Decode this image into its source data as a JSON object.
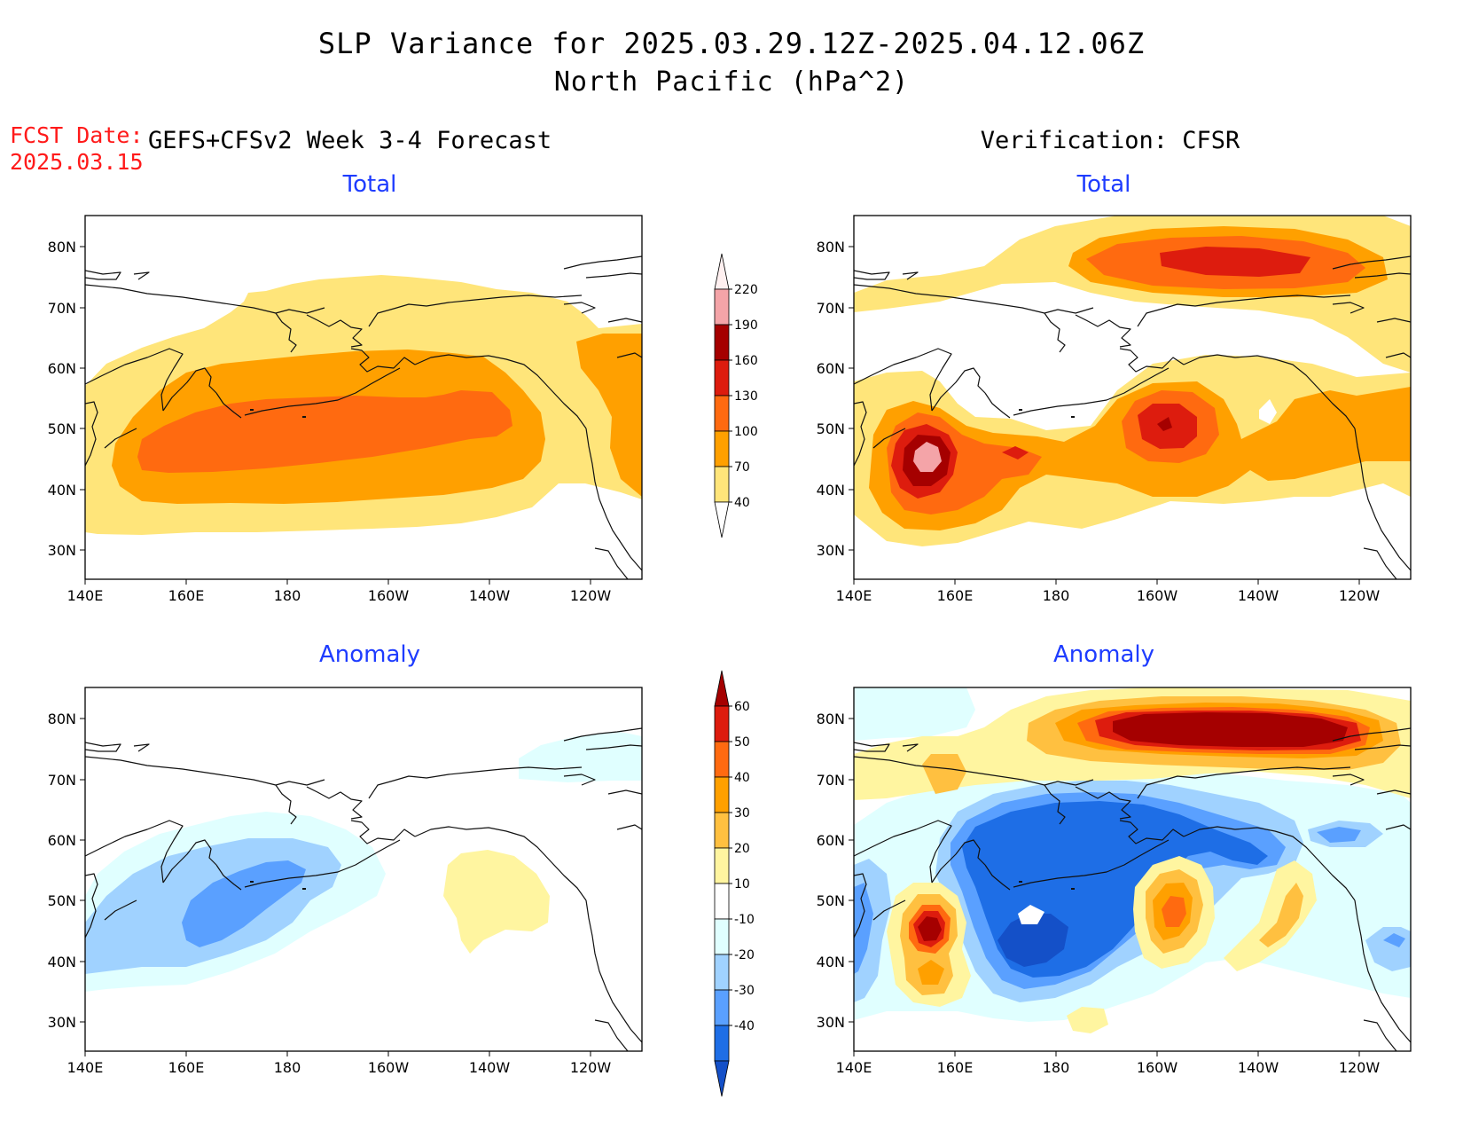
{
  "header": {
    "title_line1": "SLP Variance for 2025.03.29.12Z-2025.04.12.06Z",
    "title_line2": "North Pacific (hPa^2)",
    "fcst_label": "FCST Date:",
    "fcst_value": "2025.03.15",
    "left_column_title": "GEFS+CFSv2 Week 3-4 Forecast",
    "right_column_title": "Verification: CFSR"
  },
  "panels": {
    "total_forecast_title": "Total",
    "total_verification_title": "Total",
    "anomaly_forecast_title": "Anomaly",
    "anomaly_verification_title": "Anomaly"
  },
  "axes": {
    "lat_labels": [
      "80N",
      "70N",
      "60N",
      "50N",
      "40N",
      "30N"
    ],
    "lon_labels": [
      "140E",
      "160E",
      "180",
      "160W",
      "140W",
      "120W"
    ]
  },
  "legends": {
    "total": {
      "labels": [
        "220",
        "190",
        "160",
        "130",
        "100",
        "70",
        "40"
      ],
      "colors": [
        "#fff0f0",
        "#f4a4a8",
        "#a50000",
        "#dd1c0e",
        "#ff6a10",
        "#ffa000",
        "#ffe57a"
      ]
    },
    "anomaly": {
      "labels": [
        "60",
        "50",
        "40",
        "30",
        "20",
        "10",
        "-10",
        "-20",
        "-30",
        "-40"
      ],
      "colors": [
        "#a50000",
        "#dd1c0e",
        "#ff6a10",
        "#ffa000",
        "#ffc040",
        "#fff5a0",
        "#ffffff",
        "#e0ffff",
        "#a0d2ff",
        "#5aa0ff",
        "#1e6ee6",
        "#1450c8"
      ]
    }
  },
  "colors": {
    "total": {
      "c40": "#ffe57a",
      "c70": "#ffa000",
      "c100": "#ff6a10",
      "c130": "#dd1c0e",
      "c160": "#a50000",
      "c190": "#f4a4a8",
      "c220": "#fff0f0"
    },
    "anom": {
      "p10": "#fff5a0",
      "p20": "#ffc040",
      "p30": "#ffa000",
      "p40": "#ff6a10",
      "p50": "#dd1c0e",
      "p60": "#a50000",
      "m10": "#e0ffff",
      "m20": "#a0d2ff",
      "m30": "#5aa0ff",
      "m40": "#1e6ee6",
      "mlow": "#1450c8"
    },
    "title_blue": "#1e3cff",
    "fcst_red": "#ff1a1a"
  }
}
